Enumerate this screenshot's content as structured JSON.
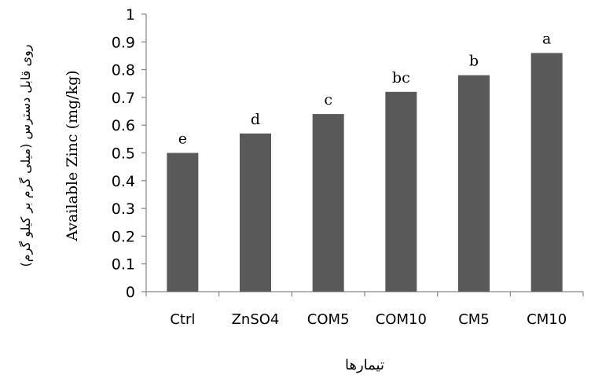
{
  "chart_data": {
    "type": "bar",
    "categories": [
      "Ctrl",
      "ZnSO4",
      "COM5",
      "COM10",
      "CM5",
      "CM10"
    ],
    "values": [
      0.5,
      0.57,
      0.64,
      0.72,
      0.78,
      0.86
    ],
    "significance_letters": [
      "e",
      "d",
      "c",
      "bc",
      "b",
      "a"
    ],
    "ylim": [
      0,
      1
    ],
    "yticks": [
      "0",
      "0.1",
      "0.2",
      "0.3",
      "0.4",
      "0.5",
      "0.6",
      "0.7",
      "0.8",
      "0.9",
      "1"
    ],
    "ylabel_en": "Available Zinc  (mg/kg)",
    "ylabel_fa": "روی قابل دسترس (میلی گرم بر کیلو گرم)",
    "xlabel": "تیمارها",
    "title": "",
    "grid": false,
    "bar_color": "#595959",
    "axis_color": "#868686"
  }
}
